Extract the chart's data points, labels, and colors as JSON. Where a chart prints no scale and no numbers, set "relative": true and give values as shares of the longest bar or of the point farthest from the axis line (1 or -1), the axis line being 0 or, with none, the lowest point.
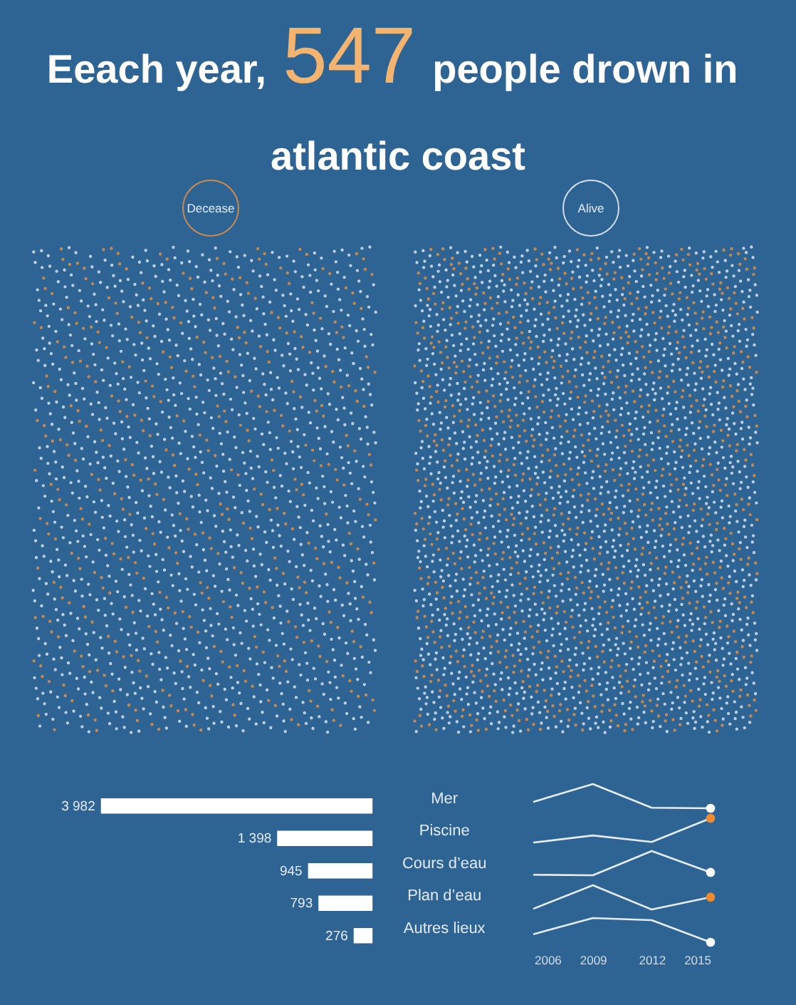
{
  "chart_data": [
    {
      "type": "other",
      "title": "Eeach year, 547 people drown in atlantic coast",
      "annotations": [
        "Decease",
        "Alive"
      ]
    },
    {
      "type": "bar",
      "orientation": "horizontal",
      "categories": [
        "Mer",
        "Piscine",
        "Cours d’eau",
        "Plan d’eau",
        "Autres lieux"
      ],
      "values": [
        3982,
        1398,
        945,
        793,
        276
      ],
      "value_labels": [
        "3 982",
        "1 398",
        "945",
        "793",
        "276"
      ],
      "color": "#ffffff",
      "xlim": [
        4000,
        0
      ],
      "tick_labels": "y"
    },
    {
      "type": "line",
      "relative": true,
      "x": [
        2006,
        2009,
        2012,
        2015
      ],
      "xlim": [
        2006,
        2015
      ],
      "xticks": [
        2006,
        2009,
        2012,
        2015
      ],
      "tick_labels": false,
      "series": [
        {
          "color": "#e6ecf3",
          "values": [
            0.27,
            1,
            0.02,
            0
          ]
        },
        {
          "type": "scatter",
          "color": "#ffffff",
          "values": [
            null,
            null,
            null,
            0
          ]
        }
      ]
    },
    {
      "type": "line",
      "relative": true,
      "x": [
        2006,
        2009,
        2012,
        2015
      ],
      "xlim": [
        2006,
        2015
      ],
      "xticks": [
        2006,
        2009,
        2012,
        2015
      ],
      "tick_labels": false,
      "series": [
        {
          "color": "#e6ecf3",
          "values": [
            0,
            0.29,
            0.02,
            1
          ]
        },
        {
          "type": "scatter",
          "color": "#ef8a2e",
          "values": [
            null,
            null,
            null,
            1
          ]
        }
      ]
    },
    {
      "type": "line",
      "relative": true,
      "x": [
        2006,
        2009,
        2012,
        2015
      ],
      "xlim": [
        2006,
        2015
      ],
      "xticks": [
        2006,
        2009,
        2012,
        2015
      ],
      "tick_labels": false,
      "series": [
        {
          "color": "#e6ecf3",
          "values": [
            0.02,
            0,
            1,
            0.12
          ]
        },
        {
          "type": "scatter",
          "color": "#ffffff",
          "values": [
            null,
            null,
            null,
            0.12
          ]
        }
      ]
    },
    {
      "type": "line",
      "relative": true,
      "x": [
        2006,
        2009,
        2012,
        2015
      ],
      "xlim": [
        2006,
        2015
      ],
      "xticks": [
        2006,
        2009,
        2012,
        2015
      ],
      "tick_labels": false,
      "series": [
        {
          "color": "#e6ecf3",
          "values": [
            0.04,
            1,
            0,
            0.51
          ]
        },
        {
          "type": "scatter",
          "color": "#ef8a2e",
          "values": [
            null,
            null,
            null,
            0.51
          ]
        }
      ]
    },
    {
      "type": "line",
      "relative": true,
      "x": [
        2006,
        2009,
        2012,
        2015
      ],
      "xlim": [
        2006,
        2015
      ],
      "xticks": [
        2006,
        2009,
        2012,
        2015
      ],
      "tick_labels": "x",
      "series": [
        {
          "color": "#e6ecf3",
          "values": [
            0.34,
            1,
            0.91,
            0
          ]
        },
        {
          "type": "scatter",
          "color": "#ffffff",
          "values": [
            null,
            null,
            null,
            0
          ]
        }
      ]
    }
  ]
}
